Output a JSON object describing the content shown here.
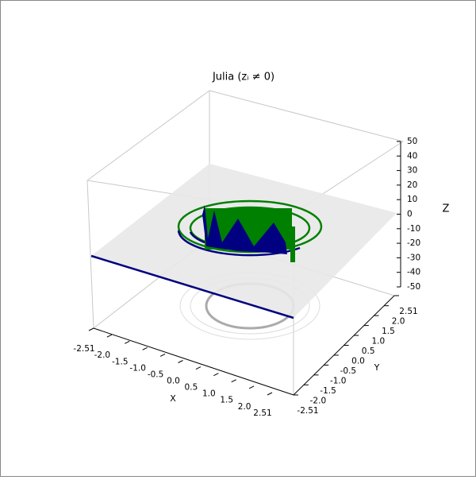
{
  "chart_data": {
    "type": "surface3d",
    "title": "Julia (zᵢ ≠ 0)",
    "xlabel": "X",
    "ylabel": "Y",
    "zlabel": "Z",
    "xlim": [
      -2.51,
      2.51
    ],
    "ylim": [
      -2.51,
      2.51
    ],
    "zlim": [
      -50,
      50
    ],
    "xticks": [
      -2.51,
      {
        "value": -2,
        "label": "-2.0"
      },
      -1.5,
      {
        "value": -1,
        "label": "-1.0"
      },
      -0.5,
      {
        "value": 0,
        "label": "0.0"
      },
      0.5,
      {
        "value": 1,
        "label": "1.0"
      },
      1.5,
      {
        "value": 2,
        "label": "2.0"
      },
      2.51
    ],
    "yticks": [
      {
        "value": -2.51,
        "label": "-2.51"
      },
      {
        "value": -2,
        "label": "-2.0"
      },
      -1.5,
      {
        "value": -1,
        "label": "-1.0"
      },
      -0.5,
      {
        "value": 0,
        "label": "0.0"
      },
      0.5,
      {
        "value": 1,
        "label": "1.0"
      },
      1.5,
      {
        "value": 2,
        "label": "2.0"
      },
      2.51
    ],
    "zticks": [
      -50,
      -40,
      -30,
      -20,
      -10,
      0,
      10,
      20,
      30,
      40,
      50
    ]
  }
}
